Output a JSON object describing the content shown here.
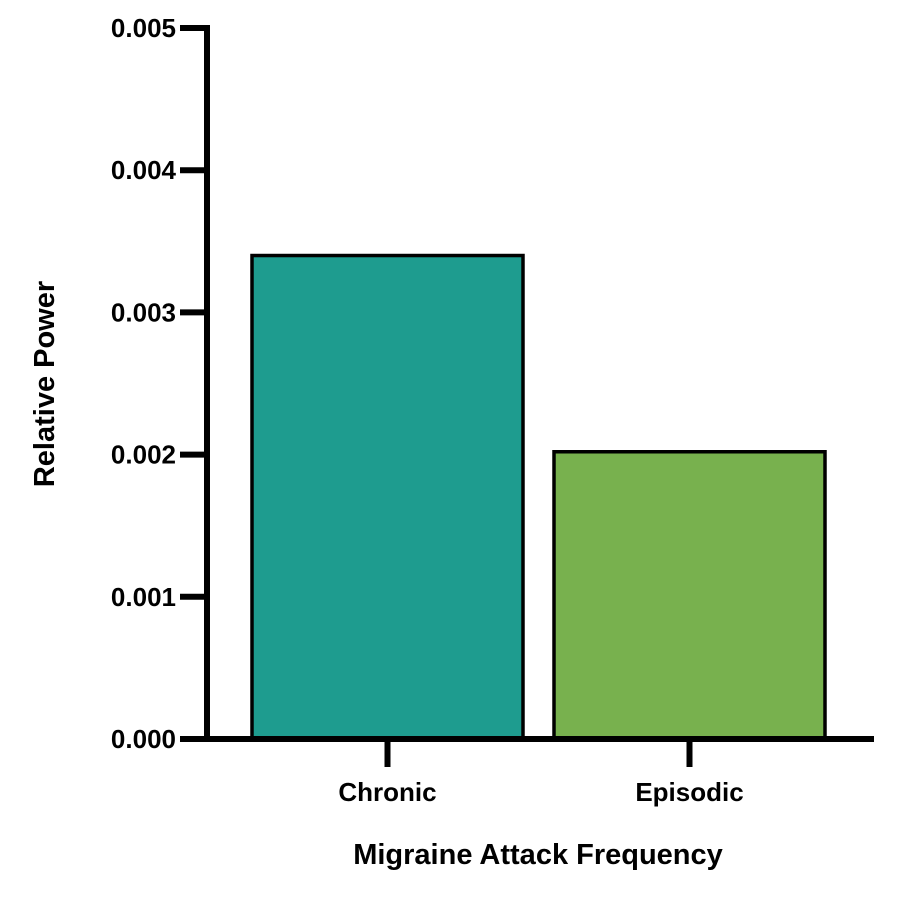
{
  "chart_data": {
    "type": "bar",
    "title": "",
    "xlabel": "Migraine Attack Frequency",
    "ylabel": "Relative Power",
    "categories": [
      "Chronic",
      "Episodic"
    ],
    "values": [
      0.0034,
      0.00202
    ],
    "bar_colors": [
      "#1e9c8f",
      "#78b14e"
    ],
    "ylim": [
      0,
      0.005
    ],
    "yticks": [
      0,
      0.001,
      0.002,
      0.003,
      0.004,
      0.005
    ],
    "ytick_labels": [
      "0.000",
      "0.001",
      "0.002",
      "0.003",
      "0.004",
      "0.005"
    ],
    "grid": false,
    "legend": "none"
  }
}
